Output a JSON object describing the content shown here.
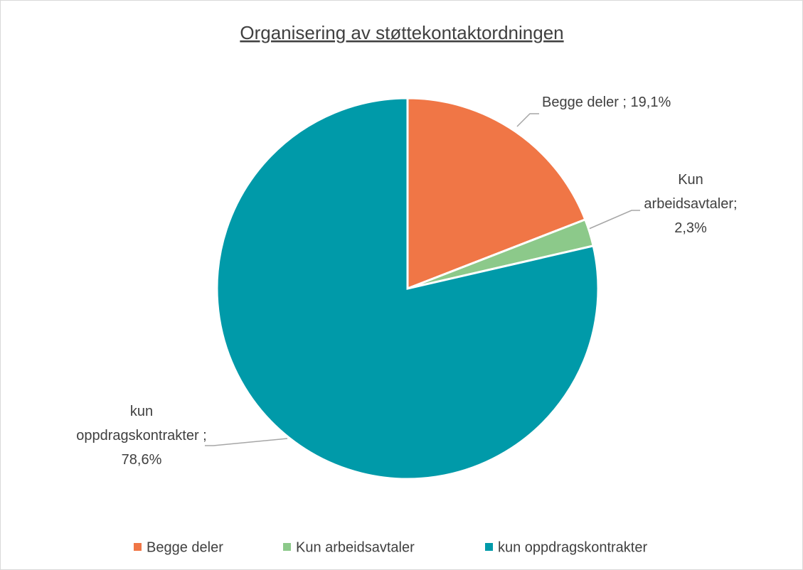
{
  "chart_data": {
    "type": "pie",
    "title": "Organisering av støttekontaktordningen",
    "categories": [
      "Begge deler",
      "Kun arbeidsavtaler",
      "kun oppdragskontrakter"
    ],
    "values": [
      19.1,
      2.3,
      78.6
    ],
    "value_labels": [
      "Begge deler ; 19,1%",
      "Kun arbeidsavtaler; 2,3%",
      "kun oppdragskontrakter ; 78,6%"
    ],
    "colors": [
      "#f07646",
      "#8cc98a",
      "#009aa9"
    ],
    "legend": "bottom"
  }
}
